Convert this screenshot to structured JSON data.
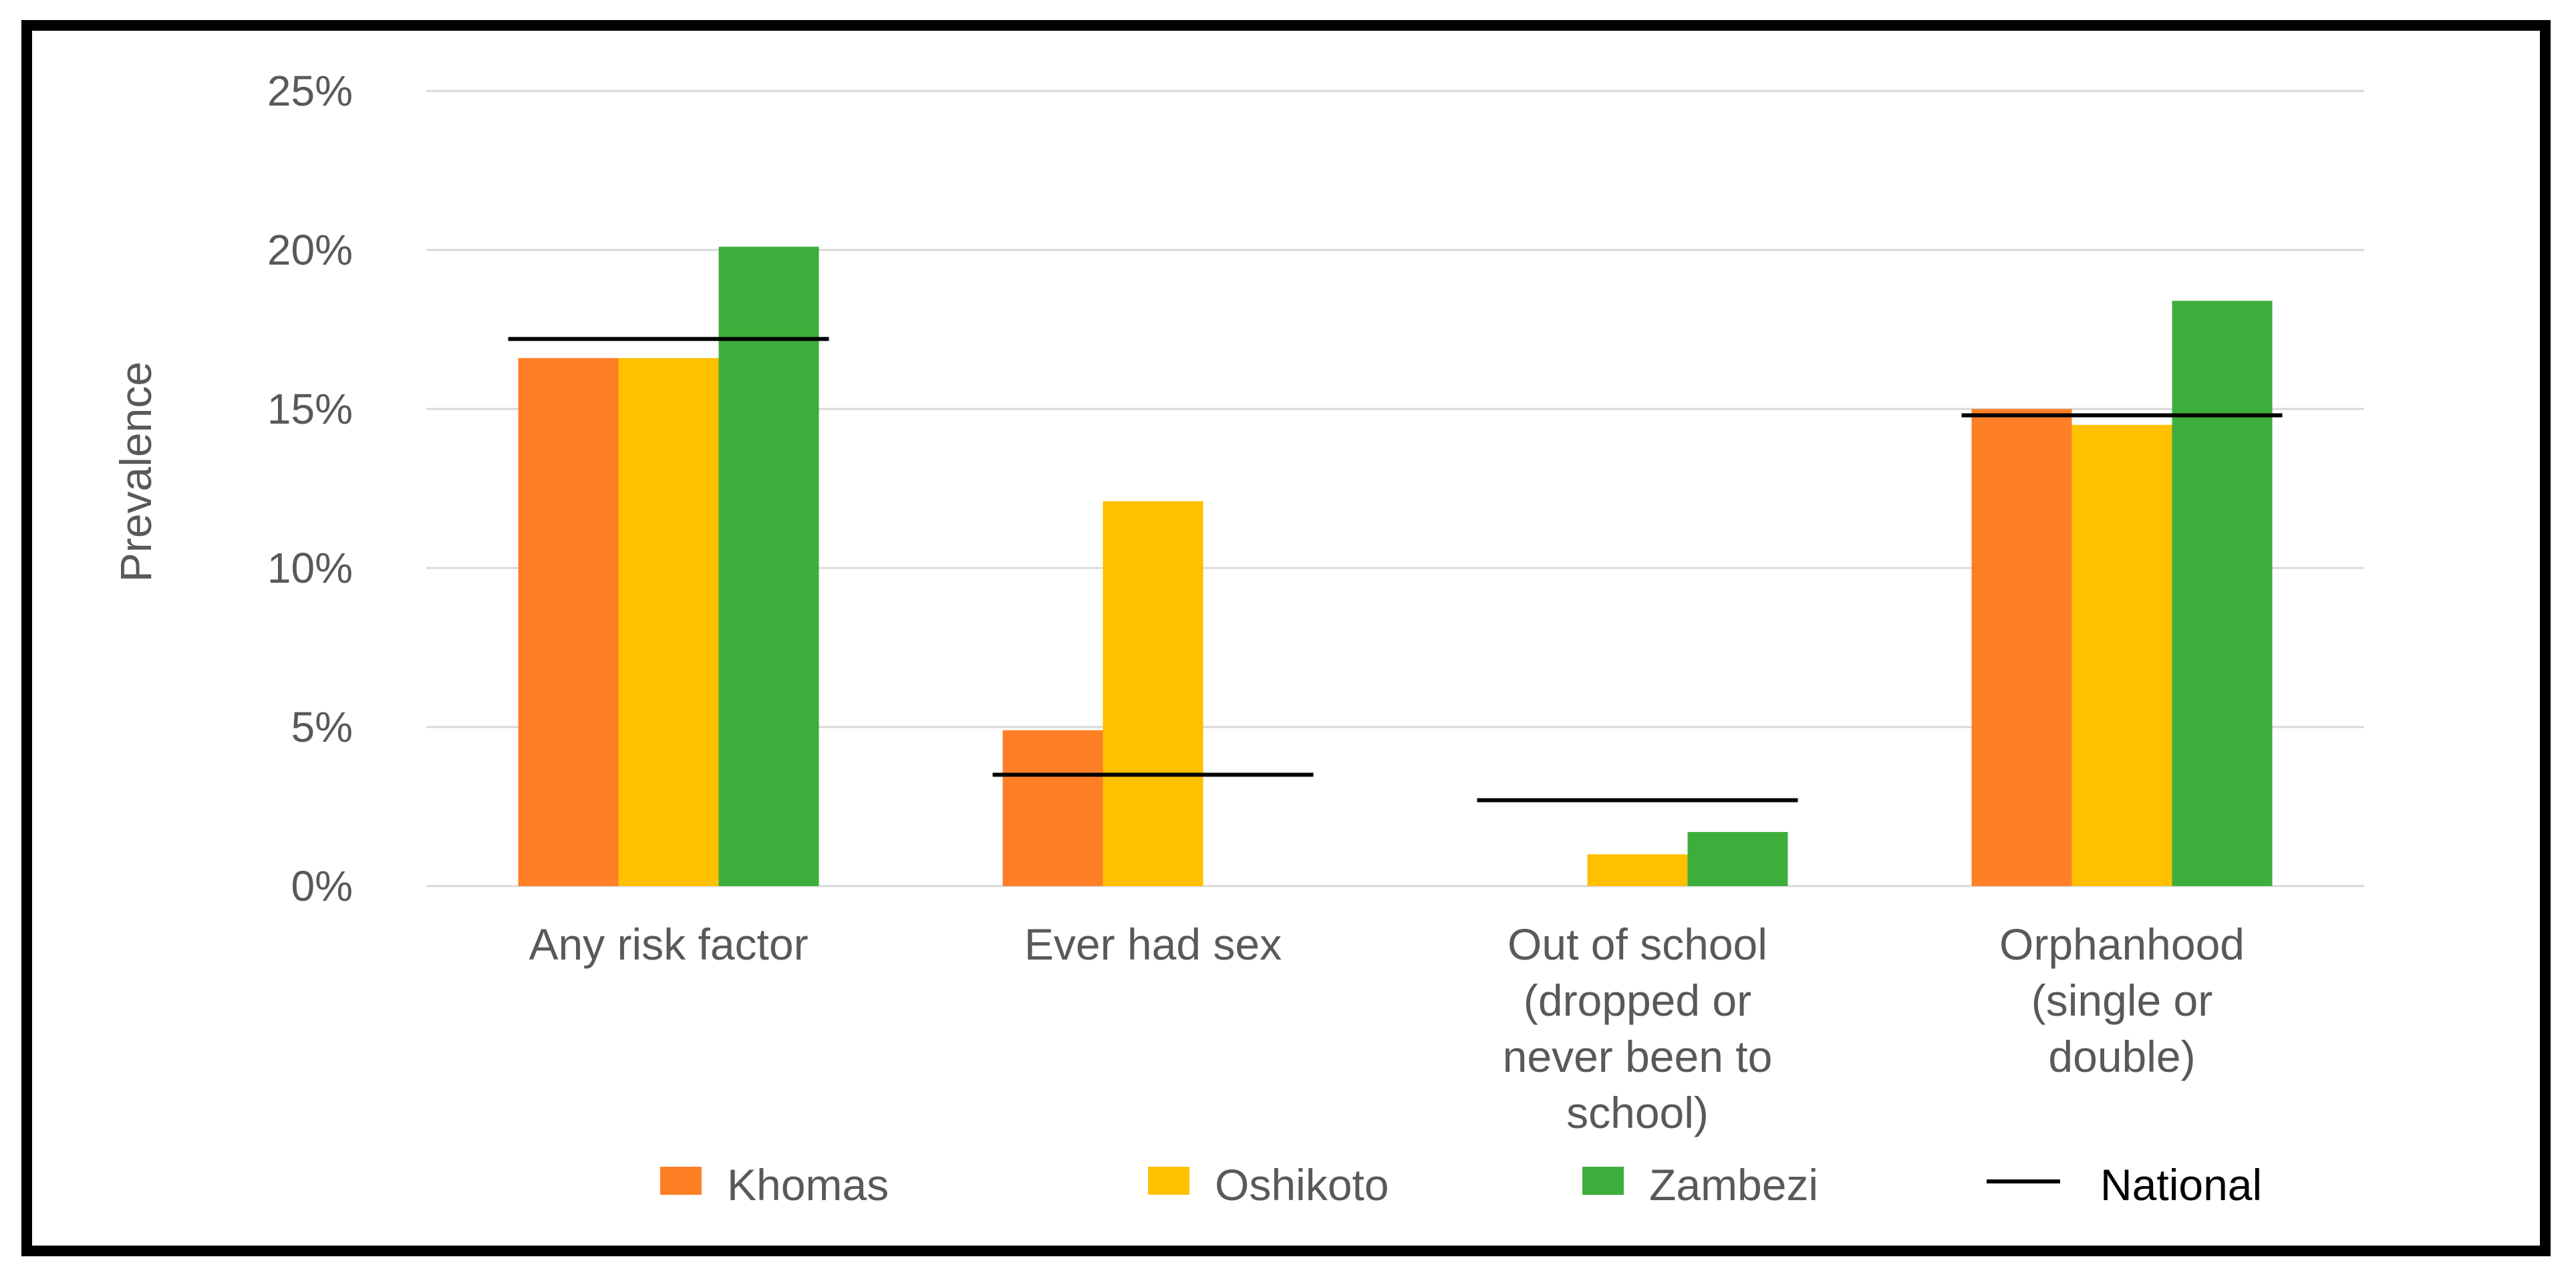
{
  "chart_data": {
    "type": "bar",
    "title": "",
    "xlabel": "",
    "ylabel": "Prevalence",
    "ylim": [
      0,
      25
    ],
    "yticks": [
      "0%",
      "5%",
      "10%",
      "15%",
      "20%",
      "25%"
    ],
    "grid": true,
    "legend_position": "bottom",
    "categories": [
      [
        "Any risk factor"
      ],
      [
        "Ever had sex"
      ],
      [
        "Out of school",
        "(dropped or",
        "never been to",
        "school)"
      ],
      [
        "Orphanhood",
        "(single or",
        "double)"
      ]
    ],
    "series": [
      {
        "name": "Khomas",
        "color": "#FF7F27",
        "values": [
          16.6,
          4.9,
          0,
          15.0
        ]
      },
      {
        "name": "Oshikoto",
        "color": "#FFC000",
        "values": [
          16.6,
          12.1,
          1.0,
          14.5
        ]
      },
      {
        "name": "Zambezi",
        "color": "#3DAE3C",
        "values": [
          20.1,
          0,
          1.7,
          18.4
        ]
      }
    ],
    "reference_line": {
      "name": "National",
      "color": "#000000",
      "values": [
        17.2,
        3.5,
        2.7,
        14.8
      ]
    }
  }
}
